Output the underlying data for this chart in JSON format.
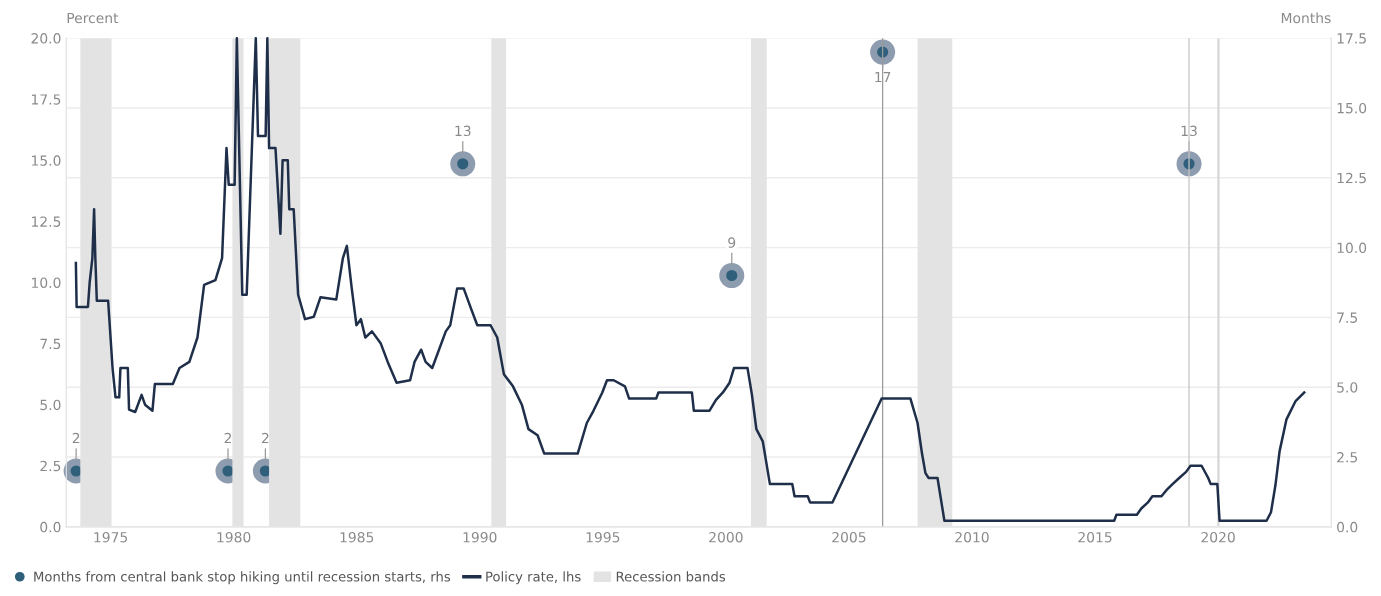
{
  "chart_data": {
    "type": "line",
    "ylabel": "Percent",
    "y2label": "Months",
    "xlim": [
      1973.2,
      2024.6
    ],
    "xticks": [
      1975,
      1980,
      1985,
      1990,
      1995,
      2000,
      2005,
      2010,
      2015,
      2020
    ],
    "ylim": [
      0,
      20
    ],
    "yticks": [
      {
        "value": 0,
        "label": "0.0"
      },
      {
        "value": 2.5,
        "label": "2.5"
      },
      {
        "value": 5,
        "label": "5.0"
      },
      {
        "value": 7.5,
        "label": "7.5"
      },
      {
        "value": 10,
        "label": "10.0"
      },
      {
        "value": 12.5,
        "label": "12.5"
      },
      {
        "value": 15,
        "label": "15.0"
      },
      {
        "value": 17.5,
        "label": "17.5"
      },
      {
        "value": 20,
        "label": "20.0"
      }
    ],
    "y2lim": [
      0,
      17.5
    ],
    "y2ticks": [
      {
        "value": 0,
        "label": "0.0"
      },
      {
        "value": 2.5,
        "label": "2.5"
      },
      {
        "value": 5,
        "label": "5.0"
      },
      {
        "value": 7.5,
        "label": "7.5"
      },
      {
        "value": 10,
        "label": "10.0"
      },
      {
        "value": 12.5,
        "label": "12.5"
      },
      {
        "value": 15,
        "label": "15.0"
      },
      {
        "value": 17.5,
        "label": "17.5"
      }
    ],
    "grid": "y2",
    "legend": "bottom left",
    "series": [
      {
        "name": "Months from central bank stop hiking until recession starts, rhs",
        "type": "scatter",
        "axis": "y2",
        "color": "#2f5f7a",
        "marker": "circle",
        "data_labels": true,
        "x": [
          1973.6,
          1979.77,
          1981.29,
          1989.31,
          2000.24,
          2006.37,
          2018.82
        ],
        "values": [
          2,
          2,
          2,
          13,
          9,
          17,
          13
        ]
      },
      {
        "name": "Policy rate, lhs",
        "type": "line",
        "color": "#1f2f4a",
        "line_style": "solid",
        "x": [
          1973.59,
          1973.62,
          1974.08,
          1974.15,
          1974.26,
          1974.33,
          1974.38,
          1974.44,
          1974.9,
          1975.08,
          1975.2,
          1975.35,
          1975.4,
          1975.7,
          1975.75,
          1976.0,
          1976.26,
          1976.4,
          1976.7,
          1976.8,
          1977.53,
          1977.8,
          1978.2,
          1978.53,
          1978.8,
          1979.26,
          1979.53,
          1979.71,
          1979.8,
          1980.04,
          1980.13,
          1980.35,
          1980.53,
          1980.9,
          1980.99,
          1981.3,
          1981.37,
          1981.44,
          1981.7,
          1981.9,
          1981.99,
          1982.2,
          1982.26,
          1982.44,
          1982.62,
          1982.9,
          1983.26,
          1983.53,
          1984.17,
          1984.44,
          1984.6,
          1984.8,
          1984.99,
          1985.17,
          1985.35,
          1985.62,
          1985.98,
          1986.26,
          1986.62,
          1987.17,
          1987.35,
          1987.62,
          1987.8,
          1988.07,
          1988.62,
          1988.8,
          1989.08,
          1989.35,
          1989.62,
          1989.9,
          1990.44,
          1990.71,
          1990.98,
          1991.35,
          1991.71,
          1991.98,
          1992.35,
          1992.62,
          1993.98,
          1994.35,
          1994.62,
          1994.98,
          1995.17,
          1995.44,
          1995.9,
          1996.07,
          1997.17,
          1997.26,
          1998.62,
          1998.7,
          1999.33,
          1999.6,
          1999.88,
          2000.15,
          2000.33,
          2000.88,
          2001.06,
          2001.24,
          2001.5,
          2001.79,
          2002.7,
          2002.79,
          2003.33,
          2003.42,
          2004.33,
          2006.33,
          2007.5,
          2007.79,
          2007.97,
          2008.11,
          2008.24,
          2008.6,
          2008.88,
          2015.78,
          2015.87,
          2016.7,
          2016.88,
          2017.15,
          2017.33,
          2017.7,
          2017.9,
          2018.15,
          2018.42,
          2018.7,
          2018.88,
          2019.33,
          2019.6,
          2019.7,
          2019.97,
          2020.06,
          2021.97,
          2022.15,
          2022.33,
          2022.5,
          2022.78,
          2023.15,
          2023.5
        ],
        "values": [
          10.8,
          9.0,
          9.0,
          10.0,
          11.0,
          13.0,
          11.0,
          9.25,
          9.25,
          6.5,
          5.3,
          5.3,
          6.5,
          6.5,
          4.8,
          4.7,
          5.4,
          5.0,
          4.75,
          5.85,
          5.85,
          6.5,
          6.75,
          7.75,
          9.9,
          10.1,
          11.0,
          15.5,
          14.0,
          14.0,
          20.0,
          9.5,
          9.5,
          20.0,
          16.0,
          16.0,
          20.0,
          15.5,
          15.5,
          12.0,
          15.0,
          15.0,
          13.0,
          13.0,
          9.5,
          8.5,
          8.6,
          9.4,
          9.3,
          11.0,
          11.5,
          9.75,
          8.25,
          8.5,
          7.75,
          8.0,
          7.5,
          6.75,
          5.9,
          6.0,
          6.75,
          7.25,
          6.75,
          6.5,
          8.0,
          8.25,
          9.75,
          9.75,
          9.0,
          8.25,
          8.25,
          7.75,
          6.25,
          5.75,
          5.0,
          4.0,
          3.75,
          3.0,
          3.0,
          4.25,
          4.75,
          5.5,
          6.0,
          6.0,
          5.75,
          5.25,
          5.25,
          5.5,
          5.5,
          4.75,
          4.75,
          5.2,
          5.5,
          5.9,
          6.5,
          6.5,
          5.4,
          4.0,
          3.5,
          1.75,
          1.75,
          1.25,
          1.25,
          1.0,
          1.0,
          5.25,
          5.25,
          4.25,
          3.0,
          2.2,
          2.0,
          2.0,
          0.25,
          0.25,
          0.5,
          0.5,
          0.75,
          1.0,
          1.25,
          1.25,
          1.5,
          1.75,
          2.0,
          2.25,
          2.5,
          2.5,
          2.0,
          1.75,
          1.75,
          0.25,
          0.25,
          0.6,
          1.7,
          3.1,
          4.4,
          5.15,
          5.5
        ]
      }
    ],
    "bands": [
      {
        "axis": "x",
        "from": 1973.77,
        "to": 1975.04,
        "color": "#e3e3e3",
        "label": "Recession bands"
      },
      {
        "axis": "x",
        "from": 1979.95,
        "to": 1980.4,
        "color": "#e3e3e3"
      },
      {
        "axis": "x",
        "from": 1981.44,
        "to": 1982.71,
        "color": "#e3e3e3"
      },
      {
        "axis": "x",
        "from": 1990.47,
        "to": 1991.07,
        "color": "#e3e3e3"
      },
      {
        "axis": "x",
        "from": 2001.02,
        "to": 2001.66,
        "color": "#e3e3e3"
      },
      {
        "axis": "x",
        "from": 2007.79,
        "to": 2009.2,
        "color": "#e3e3e3"
      },
      {
        "axis": "x",
        "from": 2019.97,
        "to": 2020.06,
        "color": "#d6d6d6"
      }
    ],
    "ref_lines": [
      {
        "axis": "x",
        "value": 2006.37,
        "color": "#9a9a9a",
        "line_style": "solid"
      },
      {
        "axis": "x",
        "value": 2018.82,
        "color": "#c4c4c4",
        "line_style": "solid"
      }
    ]
  }
}
